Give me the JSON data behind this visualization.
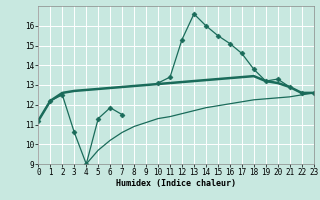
{
  "xlabel": "Humidex (Indice chaleur)",
  "x_values": [
    0,
    1,
    2,
    3,
    4,
    5,
    6,
    7,
    8,
    9,
    10,
    11,
    12,
    13,
    14,
    15,
    16,
    17,
    18,
    19,
    20,
    21,
    22,
    23
  ],
  "line1_y": [
    11.2,
    12.2,
    12.5,
    10.6,
    9.0,
    11.3,
    11.85,
    11.5,
    null,
    null,
    13.1,
    13.4,
    15.3,
    16.6,
    16.0,
    15.5,
    15.1,
    14.6,
    13.8,
    13.2,
    13.3,
    12.9,
    12.6,
    12.6
  ],
  "line2_y": [
    11.2,
    12.2,
    12.6,
    12.7,
    12.75,
    12.8,
    12.85,
    12.9,
    12.95,
    13.0,
    13.05,
    13.1,
    13.15,
    13.2,
    13.25,
    13.3,
    13.35,
    13.4,
    13.45,
    13.2,
    13.1,
    12.9,
    12.6,
    12.6
  ],
  "line3_y": [
    null,
    null,
    null,
    null,
    9.0,
    9.7,
    10.2,
    10.6,
    10.9,
    11.1,
    11.3,
    11.4,
    11.55,
    11.7,
    11.85,
    11.95,
    12.05,
    12.15,
    12.25,
    12.3,
    12.35,
    12.4,
    12.5,
    12.6
  ],
  "ylim": [
    9,
    17
  ],
  "xlim": [
    0,
    23
  ],
  "yticks": [
    9,
    10,
    11,
    12,
    13,
    14,
    15,
    16
  ],
  "xticks": [
    0,
    1,
    2,
    3,
    4,
    5,
    6,
    7,
    8,
    9,
    10,
    11,
    12,
    13,
    14,
    15,
    16,
    17,
    18,
    19,
    20,
    21,
    22,
    23
  ],
  "line_color": "#1a6b5a",
  "bg_color": "#c8e8e0",
  "grid_color": "#b0d8cc",
  "marker": "D",
  "marker_size": 2.5
}
